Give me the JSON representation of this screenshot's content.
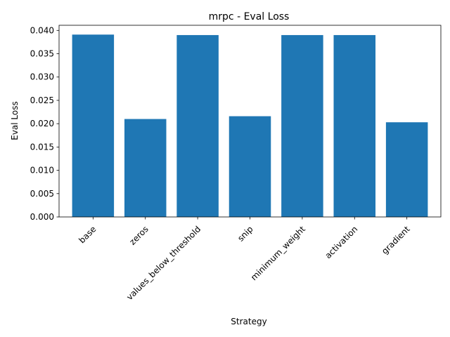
{
  "chart_data": {
    "type": "bar",
    "title": "mrpc - Eval Loss",
    "xlabel": "Strategy",
    "ylabel": "Eval Loss",
    "categories": [
      "base",
      "zeros",
      "values_below_threshold",
      "snip",
      "minimum_weight",
      "activation",
      "gradient"
    ],
    "values": [
      0.0391,
      0.021,
      0.039,
      0.0216,
      0.039,
      0.039,
      0.0203
    ],
    "ylim": [
      0,
      0.0411
    ],
    "yticks": [
      "0.000",
      "0.005",
      "0.010",
      "0.015",
      "0.020",
      "0.025",
      "0.030",
      "0.035",
      "0.040"
    ],
    "ytick_values": [
      0,
      0.005,
      0.01,
      0.015,
      0.02,
      0.025,
      0.03,
      0.035,
      0.04
    ],
    "grid": false,
    "bar_color": "#1f77b4",
    "xtick_rotation_deg": 45
  }
}
